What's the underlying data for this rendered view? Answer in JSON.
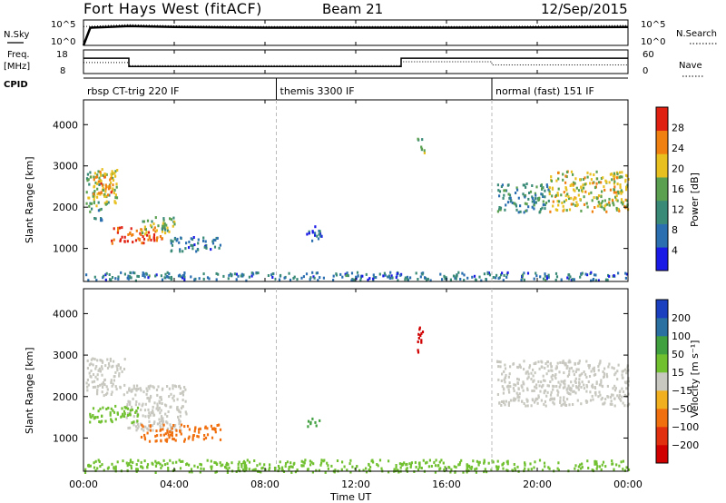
{
  "header": {
    "station": "Fort Hays West (fitACF)",
    "beam": "Beam 21",
    "date": "12/Sep/2015"
  },
  "left_labels": {
    "nsky": "N.Sky",
    "freq_line1": "Freq.",
    "freq_line2": "[MHz]",
    "cpid": "CPID"
  },
  "right_labels": {
    "nsearch": "N.Search",
    "nave": "Nave"
  },
  "noise_axis": {
    "top": "10^5",
    "bottom": "10^0"
  },
  "freq_axis": {
    "top": "18",
    "bottom": "8"
  },
  "nave_axis": {
    "top": "60",
    "bottom": "0"
  },
  "cpid_segments": [
    {
      "label": "rbsp CT-trig 220 IF",
      "start_hour": 0,
      "end_hour": 8.5
    },
    {
      "label": "themis 3300 IF",
      "start_hour": 8.5,
      "end_hour": 18
    },
    {
      "label": "normal (fast) 151 IF",
      "start_hour": 18,
      "end_hour": 24
    }
  ],
  "x_axis": {
    "label": "Time UT",
    "ticks": [
      "00:00",
      "04:00",
      "08:00",
      "12:00",
      "16:00",
      "20:00",
      "00:00"
    ],
    "tick_hours": [
      0,
      4,
      8,
      12,
      16,
      20,
      24
    ]
  },
  "power_panel": {
    "ylabel": "Slant Range [km]",
    "yticks": [
      "4000",
      "3000",
      "2000",
      "1000"
    ],
    "cbar_label": "Power [dB]",
    "cbar_ticks": [
      "28",
      "24",
      "20",
      "16",
      "12",
      "8",
      "4"
    ]
  },
  "velocity_panel": {
    "ylabel": "Slant Range [km]",
    "yticks": [
      "4000",
      "3000",
      "2000",
      "1000"
    ],
    "cbar_label": "Velocity [m s⁻¹]",
    "cbar_ticks": [
      "200",
      "100",
      "50",
      "15",
      "−15",
      "−50",
      "−100",
      "−200"
    ]
  },
  "colors": {
    "power_scale": [
      "#1a1ae6",
      "#2b6fb0",
      "#3a8a78",
      "#5aa050",
      "#e8c020",
      "#f08010",
      "#e02010"
    ],
    "velocity_scale": [
      "#1a40c0",
      "#2a70a0",
      "#40a040",
      "#70c030",
      "#c8c8c0",
      "#f0b020",
      "#f07010",
      "#e03010",
      "#d00000"
    ]
  },
  "chart_data": [
    {
      "type": "line",
      "title": "Fort Hays West (fitACF)",
      "xlabel": "Time UT",
      "xlim": [
        0,
        24
      ],
      "series": [
        {
          "name": "N.Sky",
          "x": [
            0,
            0.3,
            2,
            4,
            8,
            12,
            16,
            20,
            24
          ],
          "values": [
            1,
            3000,
            6000,
            4000,
            3000,
            3000,
            3000,
            3500,
            4000
          ]
        },
        {
          "name": "N.Search",
          "x": [
            0,
            2,
            4,
            8,
            12,
            16,
            20,
            24
          ],
          "values": [
            5000,
            12000,
            7000,
            5000,
            5000,
            5000,
            6000,
            8000
          ]
        }
      ],
      "ylim": [
        1,
        100000
      ],
      "yscale": "log"
    },
    {
      "type": "line",
      "xlabel": "Time UT",
      "xlim": [
        0,
        24
      ],
      "series": [
        {
          "name": "Freq.",
          "x": [
            0,
            2,
            2,
            14,
            14,
            24
          ],
          "values": [
            14.5,
            14.5,
            11,
            11,
            14.5,
            14.5
          ]
        },
        {
          "name": "Nave",
          "x": [
            0,
            2,
            2,
            14,
            14,
            18,
            18,
            24
          ],
          "values": [
            28,
            28,
            20,
            20,
            30,
            30,
            22,
            22
          ]
        }
      ],
      "ylim": [
        8,
        18
      ]
    },
    {
      "type": "heatmap",
      "title": "Power",
      "xlabel": "Time UT",
      "ylabel": "Slant Range [km]",
      "xlim": [
        0,
        24
      ],
      "ylim": [
        200,
        4600
      ],
      "zlim": [
        0,
        30
      ],
      "cells": [
        {
          "t": [
            0.1,
            1.5
          ],
          "r": [
            2050,
            2950
          ],
          "v": 16
        },
        {
          "t": [
            0.3,
            1.3
          ],
          "r": [
            2300,
            2900
          ],
          "v": 22
        },
        {
          "t": [
            0.2,
            0.8
          ],
          "r": [
            1700,
            2000
          ],
          "v": 10
        },
        {
          "t": [
            1.2,
            3.5
          ],
          "r": [
            1150,
            1550
          ],
          "v": 26
        },
        {
          "t": [
            2.5,
            4.0
          ],
          "r": [
            1400,
            1800
          ],
          "v": 16
        },
        {
          "t": [
            3.8,
            6.0
          ],
          "r": [
            950,
            1300
          ],
          "v": 8
        },
        {
          "t": [
            9.8,
            10.5
          ],
          "r": [
            1200,
            1600
          ],
          "v": 6
        },
        {
          "t": [
            14.7,
            15.0
          ],
          "r": [
            3300,
            3700
          ],
          "v": 14
        },
        {
          "t": [
            18.2,
            20.5
          ],
          "r": [
            1900,
            2600
          ],
          "v": 10
        },
        {
          "t": [
            20.5,
            24.0
          ],
          "r": [
            1900,
            2900
          ],
          "v": 18
        },
        {
          "t": [
            0.0,
            24.0
          ],
          "r": [
            250,
            450
          ],
          "v": 8
        }
      ]
    },
    {
      "type": "heatmap",
      "title": "Velocity",
      "xlabel": "Time UT",
      "ylabel": "Slant Range [km]",
      "xlim": [
        0,
        24
      ],
      "ylim": [
        200,
        4600
      ],
      "zlim": [
        -200,
        200
      ],
      "cells": [
        {
          "t": [
            0.1,
            1.8
          ],
          "r": [
            2050,
            2950
          ],
          "v": 0
        },
        {
          "t": [
            1.8,
            4.5
          ],
          "r": [
            1200,
            2300
          ],
          "v": 0
        },
        {
          "t": [
            0.2,
            2.5
          ],
          "r": [
            1400,
            1800
          ],
          "v": 40
        },
        {
          "t": [
            2.5,
            6.0
          ],
          "r": [
            950,
            1350
          ],
          "v": -60
        },
        {
          "t": [
            14.7,
            15.0
          ],
          "r": [
            3050,
            3700
          ],
          "v": -220
        },
        {
          "t": [
            9.8,
            10.4
          ],
          "r": [
            1300,
            1500
          ],
          "v": 60
        },
        {
          "t": [
            18.2,
            24.0
          ],
          "r": [
            1800,
            2900
          ],
          "v": 0
        },
        {
          "t": [
            0.0,
            24.0
          ],
          "r": [
            200,
            500
          ],
          "v": 30
        }
      ]
    }
  ]
}
